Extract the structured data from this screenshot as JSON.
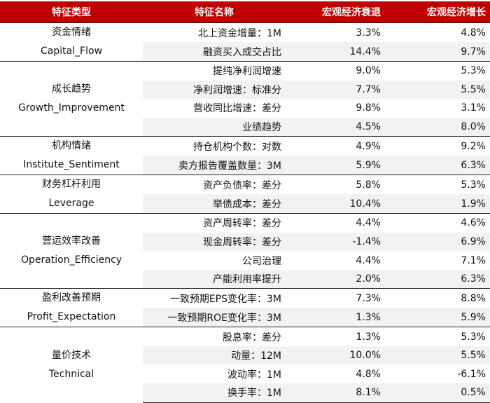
{
  "header": {
    "type": "特征类型",
    "name": "特征名称",
    "recession": "宏观经济衰退",
    "growth": "宏观经济增长"
  },
  "groups": [
    {
      "cn": "资金情绪",
      "en": "Capital_Flow",
      "rows": [
        {
          "name": "北上资金增量：1M",
          "recession": "3.3%",
          "growth": "4.8%"
        },
        {
          "name": "融资买入成交占比",
          "recession": "14.4%",
          "growth": "9.7%"
        }
      ]
    },
    {
      "cn": "成长趋势",
      "en": "Growth_Improvement",
      "rows": [
        {
          "name": "提纯净利润增速",
          "recession": "9.0%",
          "growth": "5.3%"
        },
        {
          "name": "净利润增速：标准分",
          "recession": "7.7%",
          "growth": "5.5%"
        },
        {
          "name": "营收同比增速：差分",
          "recession": "9.8%",
          "growth": "3.1%"
        },
        {
          "name": "业绩趋势",
          "recession": "4.5%",
          "growth": "8.0%"
        }
      ]
    },
    {
      "cn": "机构情绪",
      "en": "Institute_Sentiment",
      "rows": [
        {
          "name": "持仓机构个数：对数",
          "recession": "4.9%",
          "growth": "9.2%"
        },
        {
          "name": "卖方报告覆盖数量：3M",
          "recession": "5.9%",
          "growth": "6.3%"
        }
      ]
    },
    {
      "cn": "财务杠杆利用",
      "en": "Leverage",
      "rows": [
        {
          "name": "资产负债率：差分",
          "recession": "5.8%",
          "growth": "5.3%"
        },
        {
          "name": "举债成本：差分",
          "recession": "10.4%",
          "growth": "1.9%"
        }
      ]
    },
    {
      "cn": "营运效率改善",
      "en": "Operation_Efficiency",
      "rows": [
        {
          "name": "资产周转率：差分",
          "recession": "4.4%",
          "growth": "4.6%"
        },
        {
          "name": "现金周转率：差分",
          "recession": "-1.4%",
          "growth": "6.9%"
        },
        {
          "name": "公司治理",
          "recession": "4.4%",
          "growth": "7.1%"
        },
        {
          "name": "产能利用率提升",
          "recession": "2.0%",
          "growth": "6.3%"
        }
      ]
    },
    {
      "cn": "盈利改善预期",
      "en": "Profit_Expectation",
      "rows": [
        {
          "name": "一致预期EPS变化率：3M",
          "recession": "7.3%",
          "growth": "8.8%"
        },
        {
          "name": "一致预期ROE变化率：3M",
          "recession": "1.3%",
          "growth": "5.9%"
        }
      ]
    },
    {
      "cn": "量价技术",
      "en": "Technical",
      "rows": [
        {
          "name": "股息率：差分",
          "recession": "1.3%",
          "growth": "5.3%"
        },
        {
          "name": "动量：12M",
          "recession": "10.0%",
          "growth": "5.5%"
        },
        {
          "name": "波动率：1M",
          "recession": "4.8%",
          "growth": "-6.1%"
        },
        {
          "name": "换手率：1M",
          "recession": "8.1%",
          "growth": "0.5%"
        }
      ]
    }
  ]
}
